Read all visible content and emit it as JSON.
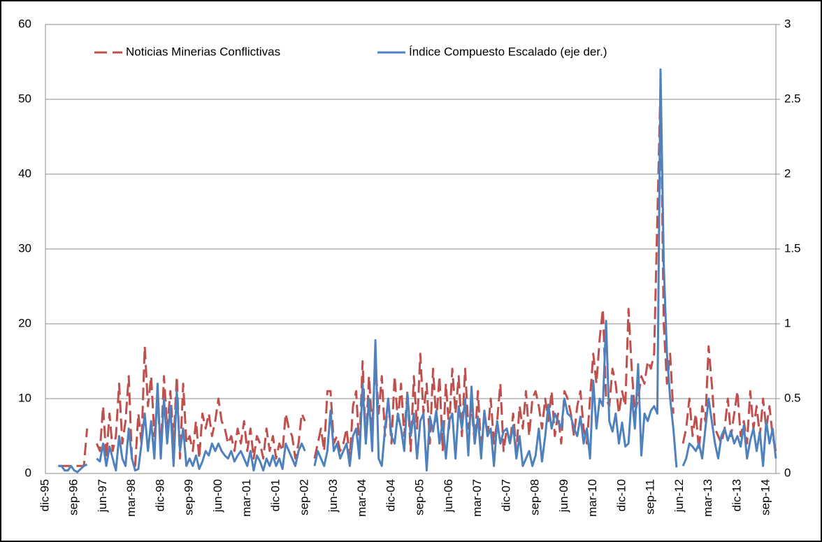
{
  "chart_data": {
    "type": "line",
    "grid": true,
    "legend": "top",
    "categories": [
      "dic-95",
      null,
      null,
      null,
      null,
      null,
      null,
      null,
      null,
      "sep-96",
      null,
      null,
      null,
      null,
      null,
      null,
      null,
      null,
      "jun-97",
      null,
      null,
      null,
      null,
      null,
      null,
      null,
      null,
      "mar-98",
      null,
      null,
      null,
      null,
      null,
      null,
      null,
      null,
      "dic-98",
      null,
      null,
      null,
      null,
      null,
      null,
      null,
      null,
      "sep-99",
      null,
      null,
      null,
      null,
      null,
      null,
      null,
      null,
      "jun-00",
      null,
      null,
      null,
      null,
      null,
      null,
      null,
      null,
      "mar-01",
      null,
      null,
      null,
      null,
      null,
      null,
      null,
      null,
      "dic-01",
      null,
      null,
      null,
      null,
      null,
      null,
      null,
      null,
      "sep-02",
      null,
      null,
      null,
      null,
      null,
      null,
      null,
      null,
      "jun-03",
      null,
      null,
      null,
      null,
      null,
      null,
      null,
      null,
      "mar-04",
      null,
      null,
      null,
      null,
      null,
      null,
      null,
      null,
      "dic-04",
      null,
      null,
      null,
      null,
      null,
      null,
      null,
      null,
      "sep-05",
      null,
      null,
      null,
      null,
      null,
      null,
      null,
      null,
      "jun-06",
      null,
      null,
      null,
      null,
      null,
      null,
      null,
      null,
      "mar-07",
      null,
      null,
      null,
      null,
      null,
      null,
      null,
      null,
      "dic-07",
      null,
      null,
      null,
      null,
      null,
      null,
      null,
      null,
      "sep-08",
      null,
      null,
      null,
      null,
      null,
      null,
      null,
      null,
      "jun-09",
      null,
      null,
      null,
      null,
      null,
      null,
      null,
      null,
      "mar-10",
      null,
      null,
      null,
      null,
      null,
      null,
      null,
      null,
      "dic-10",
      null,
      null,
      null,
      null,
      null,
      null,
      null,
      null,
      "sep-11",
      null,
      null,
      null,
      null,
      null,
      null,
      null,
      null,
      "jun-12",
      null,
      null,
      null,
      null,
      null,
      null,
      null,
      null,
      "mar-13",
      null,
      null,
      null,
      null,
      null,
      null,
      null,
      null,
      "dic-13",
      null,
      null,
      null,
      null,
      null,
      null,
      null,
      null,
      "sep-14",
      null,
      null,
      null
    ],
    "ylim": [
      0,
      60
    ],
    "yticks": [
      0,
      10,
      20,
      30,
      40,
      50,
      60
    ],
    "y2lim": [
      0,
      3
    ],
    "y2ticks": [
      0,
      0.5,
      1,
      1.5,
      2,
      2.5,
      3
    ],
    "series": [
      {
        "name": "Noticias Minerias Conflictivas",
        "color": "#c0504d",
        "line_style": "dashed",
        "values": [
          null,
          null,
          null,
          null,
          1,
          1,
          1,
          1,
          1,
          1,
          1,
          1,
          1,
          6,
          null,
          null,
          4,
          3,
          9,
          2,
          8,
          3,
          5,
          12,
          4,
          7,
          13,
          2,
          1,
          8,
          4,
          17,
          9,
          13,
          5,
          10,
          3,
          13,
          6,
          11,
          4,
          13,
          2,
          12,
          4,
          5,
          3,
          7,
          2,
          8,
          6,
          8,
          5,
          7,
          10,
          7,
          6,
          4,
          5,
          3,
          6,
          4,
          7,
          3,
          6,
          2,
          5,
          4,
          2,
          6,
          3,
          5,
          2,
          4,
          3,
          8,
          6,
          5,
          2,
          4,
          8,
          7,
          null,
          null,
          2,
          4,
          6,
          3,
          11,
          11,
          4,
          5,
          3,
          4,
          6,
          2,
          9,
          11,
          3,
          15,
          4,
          13,
          6,
          15,
          8,
          13,
          5,
          10,
          4,
          13,
          7,
          12,
          5,
          11,
          3,
          13,
          6,
          16,
          8,
          12,
          4,
          14,
          7,
          13,
          3,
          12,
          6,
          14,
          8,
          13,
          5,
          14,
          6,
          9,
          4,
          11,
          3,
          8,
          5,
          10,
          4,
          7,
          12,
          3,
          6,
          4,
          8,
          3,
          9,
          6,
          11,
          5,
          10,
          11,
          9,
          6,
          10,
          7,
          11,
          5,
          8,
          4,
          11,
          10,
          8,
          5,
          9,
          11,
          6,
          4,
          10,
          16,
          12,
          18,
          22,
          10,
          9,
          14,
          12,
          8,
          11,
          9,
          22,
          14,
          8,
          10,
          13,
          12,
          15,
          14,
          16,
          34,
          52,
          20,
          12,
          16,
          8,
          null,
          null,
          4,
          6,
          10,
          5,
          8,
          3,
          9,
          7,
          17,
          12,
          6,
          5,
          4,
          6,
          10,
          5,
          8,
          11,
          5,
          7,
          4,
          11,
          6,
          9,
          5,
          10,
          6,
          9,
          5,
          3
        ]
      },
      {
        "name": "Índice Compuesto Escalado (eje der.)",
        "color": "#4f81bd",
        "line_style": "solid",
        "axis": "y2",
        "values": [
          null,
          null,
          null,
          null,
          0.05,
          0.05,
          0.02,
          0.02,
          0.05,
          0.02,
          0.01,
          0.03,
          0.05,
          0.06,
          null,
          null,
          0.1,
          0.08,
          0.2,
          0.05,
          0.18,
          0.1,
          0.02,
          0.25,
          0.1,
          0.05,
          0.3,
          0.1,
          0.02,
          0.03,
          0.2,
          0.4,
          0.15,
          0.35,
          0.1,
          0.6,
          0.1,
          0.5,
          0.2,
          0.45,
          0.05,
          0.55,
          0.15,
          0.3,
          0.05,
          0.1,
          0.05,
          0.12,
          0.03,
          0.08,
          0.15,
          0.12,
          0.2,
          0.15,
          0.2,
          0.15,
          0.12,
          0.1,
          0.15,
          0.08,
          0.12,
          0.15,
          0.1,
          0.05,
          0.15,
          0.02,
          0.12,
          0.08,
          0.02,
          0.1,
          0.05,
          0.12,
          0.05,
          0.1,
          0.03,
          0.2,
          0.15,
          0.1,
          0.05,
          0.15,
          0.2,
          0.15,
          null,
          null,
          0.05,
          0.15,
          0.1,
          0.05,
          0.15,
          0.42,
          0.15,
          0.2,
          0.1,
          0.15,
          0.2,
          0.05,
          0.25,
          0.3,
          0.1,
          0.6,
          0.2,
          0.5,
          0.15,
          0.89,
          0.1,
          0.05,
          0.3,
          0.5,
          0.25,
          0.2,
          0.4,
          0.3,
          0.15,
          0.53,
          0.25,
          0.4,
          0.1,
          0.35,
          0.4,
          0.02,
          0.38,
          0.28,
          0.42,
          0.2,
          0.35,
          0.1,
          0.35,
          0.4,
          0.1,
          0.45,
          0.3,
          0.5,
          0.12,
          0.58,
          0.2,
          0.38,
          0.1,
          0.42,
          0.25,
          0.3,
          0.05,
          0.35,
          0.2,
          0.28,
          0.3,
          0.2,
          0.32,
          0.1,
          0.25,
          0.05,
          0.1,
          0.15,
          0.05,
          0.12,
          0.3,
          0.08,
          0.25,
          0.46,
          0.3,
          0.4,
          0.35,
          0.3,
          0.5,
          0.4,
          0.38,
          0.3,
          0.25,
          0.38,
          0.2,
          0.3,
          0.1,
          0.62,
          0.3,
          0.5,
          0.45,
          1.02,
          0.35,
          0.28,
          0.4,
          0.2,
          0.34,
          0.18,
          0.2,
          0.52,
          0.3,
          0.73,
          0.12,
          0.4,
          0.35,
          0.42,
          0.45,
          0.4,
          2.7,
          1.4,
          0.8,
          0.5,
          0.3,
          0.04,
          null,
          0.05,
          0.1,
          0.2,
          0.18,
          0.15,
          0.2,
          0.1,
          0.3,
          0.5,
          0.35,
          0.2,
          0.1,
          0.25,
          0.3,
          0.22,
          0.28,
          0.2,
          0.25,
          0.18,
          0.32,
          0.1,
          0.22,
          0.3,
          0.15,
          0.28,
          0.05,
          0.35,
          0.2,
          0.3,
          0.1
        ]
      }
    ]
  }
}
